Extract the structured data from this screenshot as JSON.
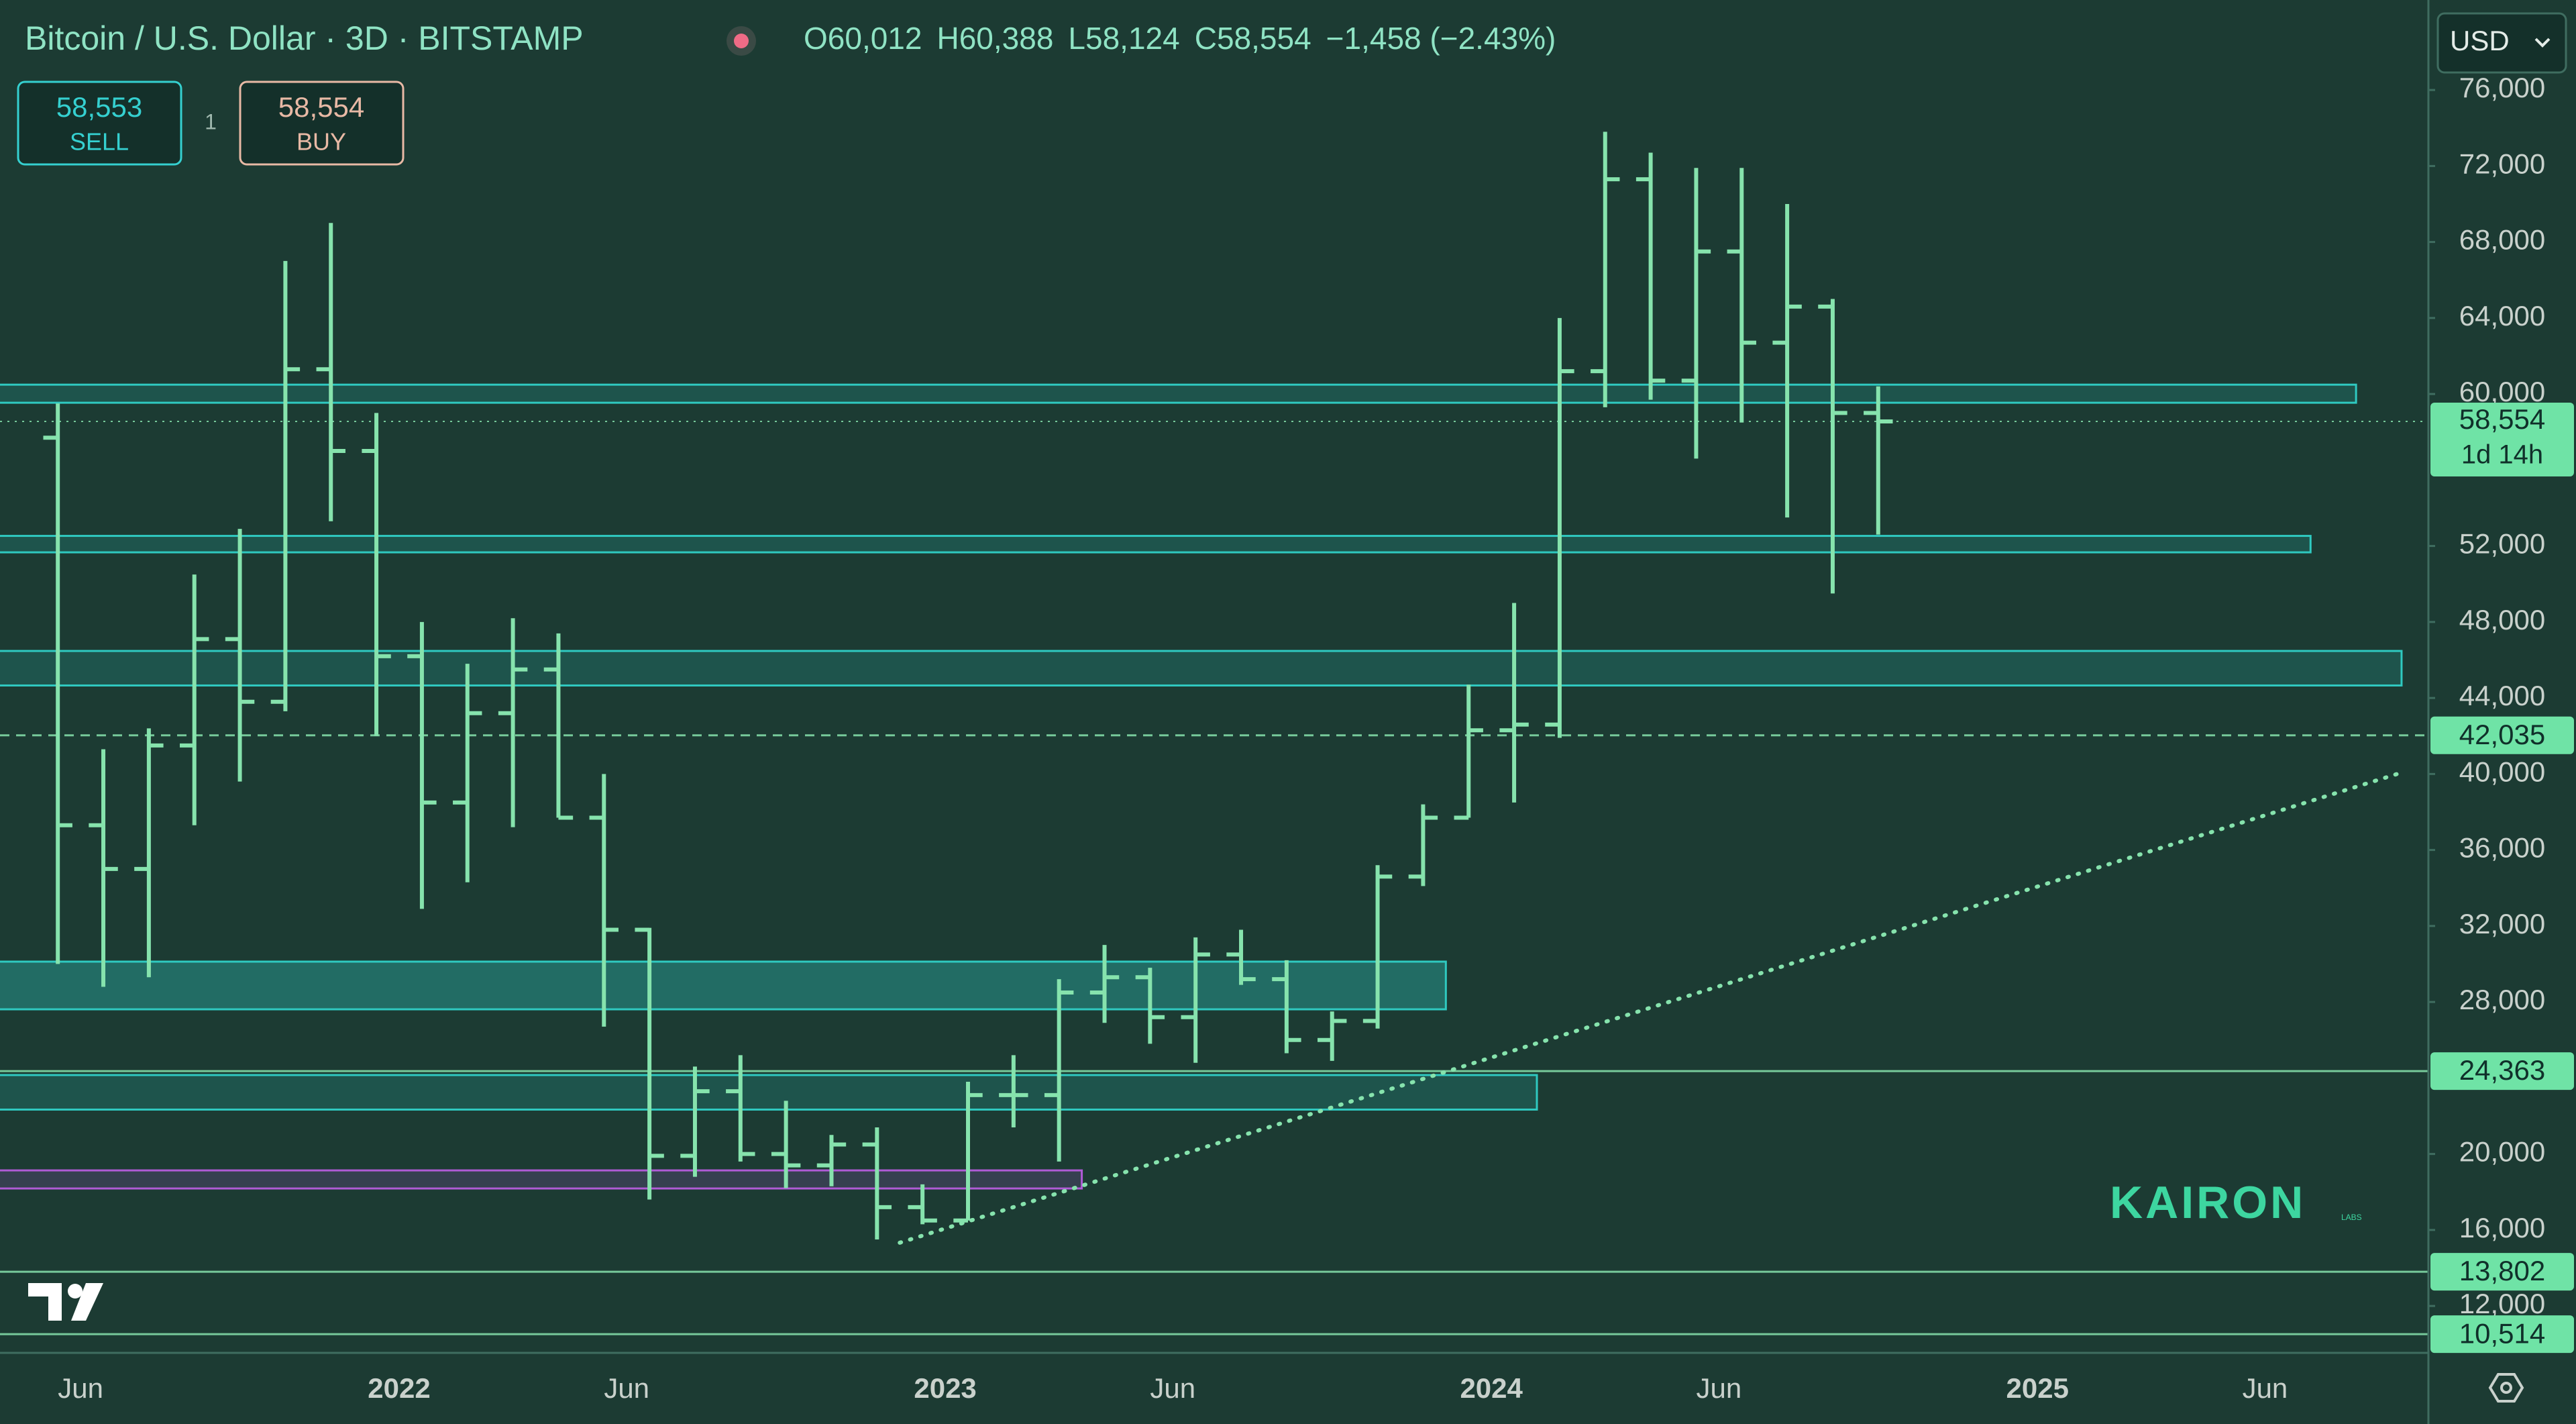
{
  "header": {
    "title": "Bitcoin / U.S. Dollar · 3D · BITSTAMP",
    "ohlc": [
      {
        "key": "O",
        "value": "60,012"
      },
      {
        "key": "H",
        "value": "60,388"
      },
      {
        "key": "L",
        "value": "58,124"
      },
      {
        "key": "C",
        "value": "58,554"
      }
    ],
    "change": "−1,458 (−2.43%)",
    "currency": "USD"
  },
  "trade": {
    "sell_price": "58,553",
    "sell": "SELL",
    "spread": "1",
    "buy_price": "58,554",
    "buy": "BUY"
  },
  "watermark": {
    "brand": "KAIRON",
    "sub": "LABS"
  },
  "chart_data": {
    "type": "ohlc",
    "color": "#86e3ad",
    "x": [
      "2021-05",
      "2021-06",
      "2021-07",
      "2021-08",
      "2021-09",
      "2021-10",
      "2021-11",
      "2021-12",
      "2022-01",
      "2022-02",
      "2022-03",
      "2022-04",
      "2022-05",
      "2022-06",
      "2022-07",
      "2022-08",
      "2022-09",
      "2022-10",
      "2022-11",
      "2022-12",
      "2023-01",
      "2023-02",
      "2023-03",
      "2023-04",
      "2023-05",
      "2023-06",
      "2023-07",
      "2023-08",
      "2023-09",
      "2023-10",
      "2023-11",
      "2023-12",
      "2024-01",
      "2024-02",
      "2024-03",
      "2024-04",
      "2024-05",
      "2024-06",
      "2024-07",
      "2024-08",
      "2024-09"
    ],
    "open": [
      57700,
      37300,
      35000,
      41500,
      47100,
      43800,
      61300,
      57000,
      46200,
      38500,
      43200,
      45500,
      37700,
      31800,
      19900,
      23300,
      20000,
      19400,
      20500,
      17200,
      16500,
      23100,
      23100,
      28500,
      29300,
      27200,
      30500,
      29200,
      26000,
      27000,
      34600,
      37700,
      42300,
      42600,
      61200,
      71300,
      60700,
      67500,
      62700,
      64600,
      59000
    ],
    "high": [
      59500,
      41300,
      42400,
      50500,
      52900,
      67000,
      69000,
      59000,
      48000,
      45800,
      48200,
      47400,
      40000,
      31900,
      24600,
      25200,
      22800,
      21000,
      21400,
      18400,
      23800,
      25200,
      29200,
      31000,
      29800,
      31400,
      31800,
      30200,
      27500,
      35200,
      38400,
      44700,
      49000,
      64000,
      73800,
      72700,
      71900,
      71900,
      70000,
      65000,
      60400
    ],
    "low": [
      30000,
      28800,
      29300,
      37300,
      39600,
      43300,
      53300,
      42000,
      32900,
      34300,
      37200,
      37700,
      26700,
      17600,
      18800,
      19600,
      18200,
      18300,
      15500,
      16300,
      16500,
      21400,
      19600,
      26900,
      25800,
      24800,
      28900,
      25300,
      24900,
      26600,
      34100,
      37700,
      38500,
      41900,
      59300,
      59700,
      56600,
      58500,
      53500,
      49500,
      52600
    ],
    "close": [
      37300,
      35000,
      41500,
      47100,
      43800,
      61300,
      57000,
      46200,
      38500,
      43200,
      45500,
      37700,
      31800,
      19900,
      23300,
      20000,
      19400,
      20500,
      17200,
      16500,
      23100,
      23100,
      28500,
      29300,
      27200,
      30500,
      29200,
      26000,
      27000,
      34600,
      37700,
      42300,
      42600,
      61200,
      71300,
      60700,
      67500,
      62700,
      64600,
      59000,
      58554
    ],
    "ylim": [
      9531,
      80737
    ],
    "yticks": [
      {
        "value": 12000,
        "label": "12,000"
      },
      {
        "value": 16000,
        "label": "16,000"
      },
      {
        "value": 20000,
        "label": "20,000"
      },
      {
        "value": 28000,
        "label": "28,000"
      },
      {
        "value": 32000,
        "label": "32,000"
      },
      {
        "value": 36000,
        "label": "36,000"
      },
      {
        "value": 40000,
        "label": "40,000"
      },
      {
        "value": 44000,
        "label": "44,000"
      },
      {
        "value": 48000,
        "label": "48,000"
      },
      {
        "value": 52000,
        "label": "52,000"
      },
      {
        "value": 60000,
        "label": "60,000"
      },
      {
        "value": 64000,
        "label": "64,000"
      },
      {
        "value": 68000,
        "label": "68,000"
      },
      {
        "value": 72000,
        "label": "72,000"
      },
      {
        "value": 76000,
        "label": "76,000"
      }
    ],
    "xticks": [
      {
        "value": "2021-06",
        "label": "Jun"
      },
      {
        "value": "2022-01",
        "label": "2022"
      },
      {
        "value": "2022-06",
        "label": "Jun"
      },
      {
        "value": "2023-01",
        "label": "2023"
      },
      {
        "value": "2023-06",
        "label": "Jun"
      },
      {
        "value": "2024-01",
        "label": "2024"
      },
      {
        "value": "2024-06",
        "label": "Jun"
      },
      {
        "value": "2025-01",
        "label": "2025"
      },
      {
        "value": "2025-06",
        "label": "Jun"
      }
    ],
    "zones": [
      {
        "low": 59540,
        "high": 60491,
        "end": "2025-08",
        "color": "#2fc9c0"
      },
      {
        "low": 51666,
        "high": 52531,
        "end": "2025-07",
        "color": "#2fc9c0"
      },
      {
        "low": 44658,
        "high": 46475,
        "end": "2025-09",
        "color": "#2fc9c0"
      },
      {
        "low": 27614,
        "high": 30123,
        "end": "2023-12",
        "color": "#2fc9c0"
      },
      {
        "low": 22336,
        "high": 24153,
        "end": "2024-02",
        "color": "#2fc9c0"
      },
      {
        "low": 18183,
        "high": 19135,
        "end": "2023-04",
        "color": "#b05bd6"
      }
    ],
    "levels": [
      {
        "value": 58554,
        "label": "58,554",
        "style": "dotted",
        "note": "1d 14h"
      },
      {
        "value": 42035,
        "label": "42,035",
        "style": "dashed"
      },
      {
        "value": 24363,
        "label": "24,363",
        "style": "solid"
      },
      {
        "value": 13802,
        "label": "13,802",
        "style": "solid"
      },
      {
        "value": 10514,
        "label": "10,514",
        "style": "solid"
      }
    ],
    "trendline": {
      "x": [
        "2022-12",
        "2025-09"
      ],
      "y": [
        15328,
        40073
      ]
    },
    "grid": false
  }
}
